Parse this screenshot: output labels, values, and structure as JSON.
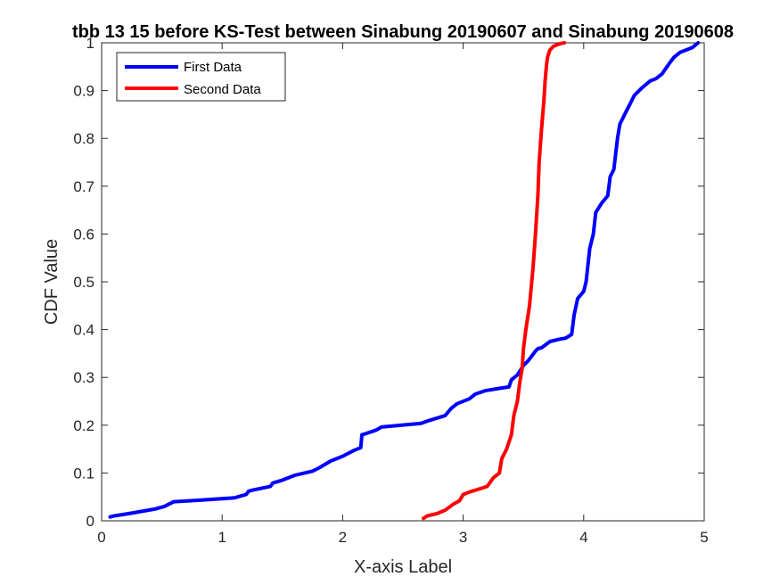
{
  "chart_data": {
    "type": "line",
    "title": "tbb 13 15 before KS-Test between Sinabung 20190607 and Sinabung 20190608",
    "xlabel": "X-axis Label",
    "ylabel": "CDF Value",
    "xlim": [
      0,
      5
    ],
    "ylim": [
      0,
      1
    ],
    "xticks": [
      "0",
      "1",
      "2",
      "3",
      "4",
      "5"
    ],
    "yticks": [
      "0",
      "0.1",
      "0.2",
      "0.3",
      "0.4",
      "0.5",
      "0.6",
      "0.7",
      "0.8",
      "0.9",
      "1"
    ],
    "grid": false,
    "legend_position": "top-left",
    "series": [
      {
        "name": "First Data",
        "color": "#0000ff",
        "x": [
          0.07,
          0.1,
          0.25,
          0.45,
          0.52,
          0.6,
          0.8,
          1.1,
          1.2,
          1.22,
          1.25,
          1.4,
          1.42,
          1.5,
          1.6,
          1.75,
          1.8,
          1.9,
          2.0,
          2.1,
          2.15,
          2.16,
          2.2,
          2.28,
          2.32,
          2.45,
          2.65,
          2.72,
          2.85,
          2.9,
          2.95,
          3.05,
          3.1,
          3.18,
          3.3,
          3.38,
          3.4,
          3.45,
          3.5,
          3.54,
          3.6,
          3.62,
          3.65,
          3.72,
          3.8,
          3.85,
          3.9,
          3.92,
          3.95,
          4.0,
          4.02,
          4.05,
          4.08,
          4.1,
          4.15,
          4.2,
          4.22,
          4.25,
          4.28,
          4.3,
          4.35,
          4.38,
          4.42,
          4.48,
          4.55,
          4.6,
          4.65,
          4.72,
          4.75,
          4.8,
          4.9,
          4.95
        ],
        "y": [
          0.008,
          0.01,
          0.016,
          0.025,
          0.03,
          0.04,
          0.043,
          0.048,
          0.055,
          0.062,
          0.064,
          0.072,
          0.079,
          0.085,
          0.095,
          0.104,
          0.11,
          0.125,
          0.135,
          0.148,
          0.153,
          0.18,
          0.183,
          0.19,
          0.196,
          0.199,
          0.204,
          0.21,
          0.22,
          0.235,
          0.245,
          0.255,
          0.265,
          0.272,
          0.277,
          0.28,
          0.295,
          0.305,
          0.325,
          0.335,
          0.355,
          0.36,
          0.362,
          0.375,
          0.38,
          0.382,
          0.39,
          0.43,
          0.465,
          0.48,
          0.5,
          0.57,
          0.6,
          0.645,
          0.665,
          0.68,
          0.72,
          0.735,
          0.8,
          0.83,
          0.855,
          0.87,
          0.89,
          0.905,
          0.92,
          0.925,
          0.935,
          0.96,
          0.97,
          0.98,
          0.99,
          1.0
        ]
      },
      {
        "name": "Second Data",
        "color": "#ff0000",
        "x": [
          2.67,
          2.7,
          2.78,
          2.85,
          2.92,
          2.97,
          3.0,
          3.05,
          3.15,
          3.2,
          3.25,
          3.3,
          3.32,
          3.36,
          3.4,
          3.42,
          3.45,
          3.47,
          3.49,
          3.5,
          3.52,
          3.55,
          3.58,
          3.6,
          3.62,
          3.63,
          3.65,
          3.67,
          3.68,
          3.69,
          3.7,
          3.72,
          3.75,
          3.8,
          3.84
        ],
        "y": [
          0.005,
          0.01,
          0.015,
          0.022,
          0.035,
          0.042,
          0.055,
          0.06,
          0.068,
          0.072,
          0.09,
          0.1,
          0.13,
          0.15,
          0.18,
          0.22,
          0.25,
          0.29,
          0.32,
          0.36,
          0.4,
          0.45,
          0.53,
          0.6,
          0.68,
          0.75,
          0.82,
          0.88,
          0.92,
          0.95,
          0.97,
          0.985,
          0.993,
          0.998,
          1.0
        ]
      }
    ]
  }
}
